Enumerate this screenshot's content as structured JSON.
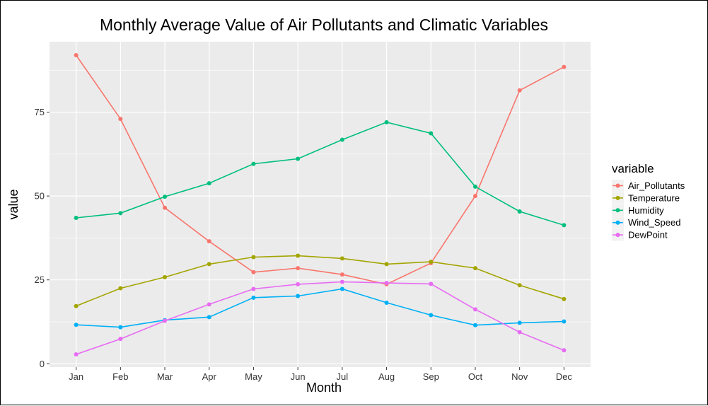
{
  "chart_data": {
    "type": "line",
    "title": "Monthly Average Value of Air Pollutants and Climatic Variables",
    "xlabel": "Month",
    "ylabel": "value",
    "categories": [
      "Jan",
      "Feb",
      "Mar",
      "Apr",
      "May",
      "Jun",
      "Jul",
      "Aug",
      "Sep",
      "Oct",
      "Nov",
      "Dec"
    ],
    "yticks": [
      0,
      25,
      50,
      75
    ],
    "ylim": [
      -1,
      96
    ],
    "grid": true,
    "legend_title": "variable",
    "legend_position": "right",
    "series": [
      {
        "name": "Air_Pollutants",
        "color": "#F8766D",
        "values": [
          92,
          73,
          46.5,
          36.5,
          27.3,
          28.5,
          26.6,
          23.7,
          30,
          50,
          81.5,
          88.5
        ]
      },
      {
        "name": "Temperature",
        "color": "#A3A500",
        "values": [
          17.2,
          22.5,
          25.8,
          29.7,
          31.8,
          32.2,
          31.4,
          29.7,
          30.4,
          28.5,
          23.4,
          19.3
        ]
      },
      {
        "name": "Humidity",
        "color": "#00BF7D",
        "values": [
          43.5,
          44.9,
          49.8,
          53.8,
          59.6,
          61.1,
          66.8,
          72,
          68.7,
          52.8,
          45.4,
          41.3
        ]
      },
      {
        "name": "Wind_Speed",
        "color": "#00B0F6",
        "values": [
          11.6,
          10.9,
          13,
          13.9,
          19.7,
          20.2,
          22.3,
          18.2,
          14.5,
          11.5,
          12.2,
          12.6
        ]
      },
      {
        "name": "DewPoint",
        "color": "#E76BF3",
        "values": [
          2.8,
          7.4,
          12.8,
          17.7,
          22.3,
          23.7,
          24.4,
          24.1,
          23.8,
          16.2,
          9.4,
          4
        ]
      }
    ]
  }
}
